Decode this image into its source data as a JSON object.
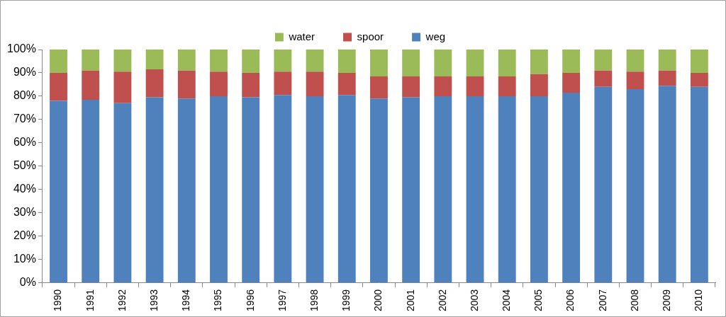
{
  "chart_data": {
    "type": "bar",
    "stacked": true,
    "grid": false,
    "legend": "top",
    "categories": [
      "1990",
      "1991",
      "1992",
      "1993",
      "1994",
      "1995",
      "1996",
      "1997",
      "1998",
      "1999",
      "2000",
      "2001",
      "2002",
      "2003",
      "2004",
      "2005",
      "2006",
      "2007",
      "2008",
      "2009",
      "2010"
    ],
    "series": [
      {
        "name": "weg",
        "color": "#4f81bd",
        "values": [
          78,
          78.5,
          77,
          79.5,
          79,
          80,
          79.5,
          80.5,
          80,
          80.5,
          79,
          79.5,
          80,
          80,
          80,
          80,
          81.5,
          84,
          83,
          84.5,
          84
        ]
      },
      {
        "name": "spoor",
        "color": "#c0504d",
        "values": [
          12,
          12.5,
          13.5,
          12,
          12,
          10.5,
          10.5,
          10,
          10.5,
          9.5,
          9.5,
          9,
          8.5,
          8.5,
          8.5,
          9.5,
          8.5,
          7,
          7.5,
          6.5,
          6
        ]
      },
      {
        "name": "water",
        "color": "#9bbb59",
        "values": [
          10,
          9,
          9.5,
          8.5,
          9,
          9.5,
          10,
          9.5,
          9.5,
          10,
          11.5,
          11.5,
          11.5,
          11.5,
          11.5,
          10.5,
          10,
          9,
          9.5,
          9,
          10
        ]
      }
    ],
    "ylim": [
      0,
      100
    ],
    "yticks": [
      {
        "value": 0,
        "label": "0%"
      },
      {
        "value": 10,
        "label": "10%"
      },
      {
        "value": 20,
        "label": "20%"
      },
      {
        "value": 30,
        "label": "30%"
      },
      {
        "value": 40,
        "label": "40%"
      },
      {
        "value": 50,
        "label": "50%"
      },
      {
        "value": 60,
        "label": "60%"
      },
      {
        "value": 70,
        "label": "70%"
      },
      {
        "value": 80,
        "label": "80%"
      },
      {
        "value": 90,
        "label": "90%"
      },
      {
        "value": 100,
        "label": "100%"
      }
    ]
  }
}
